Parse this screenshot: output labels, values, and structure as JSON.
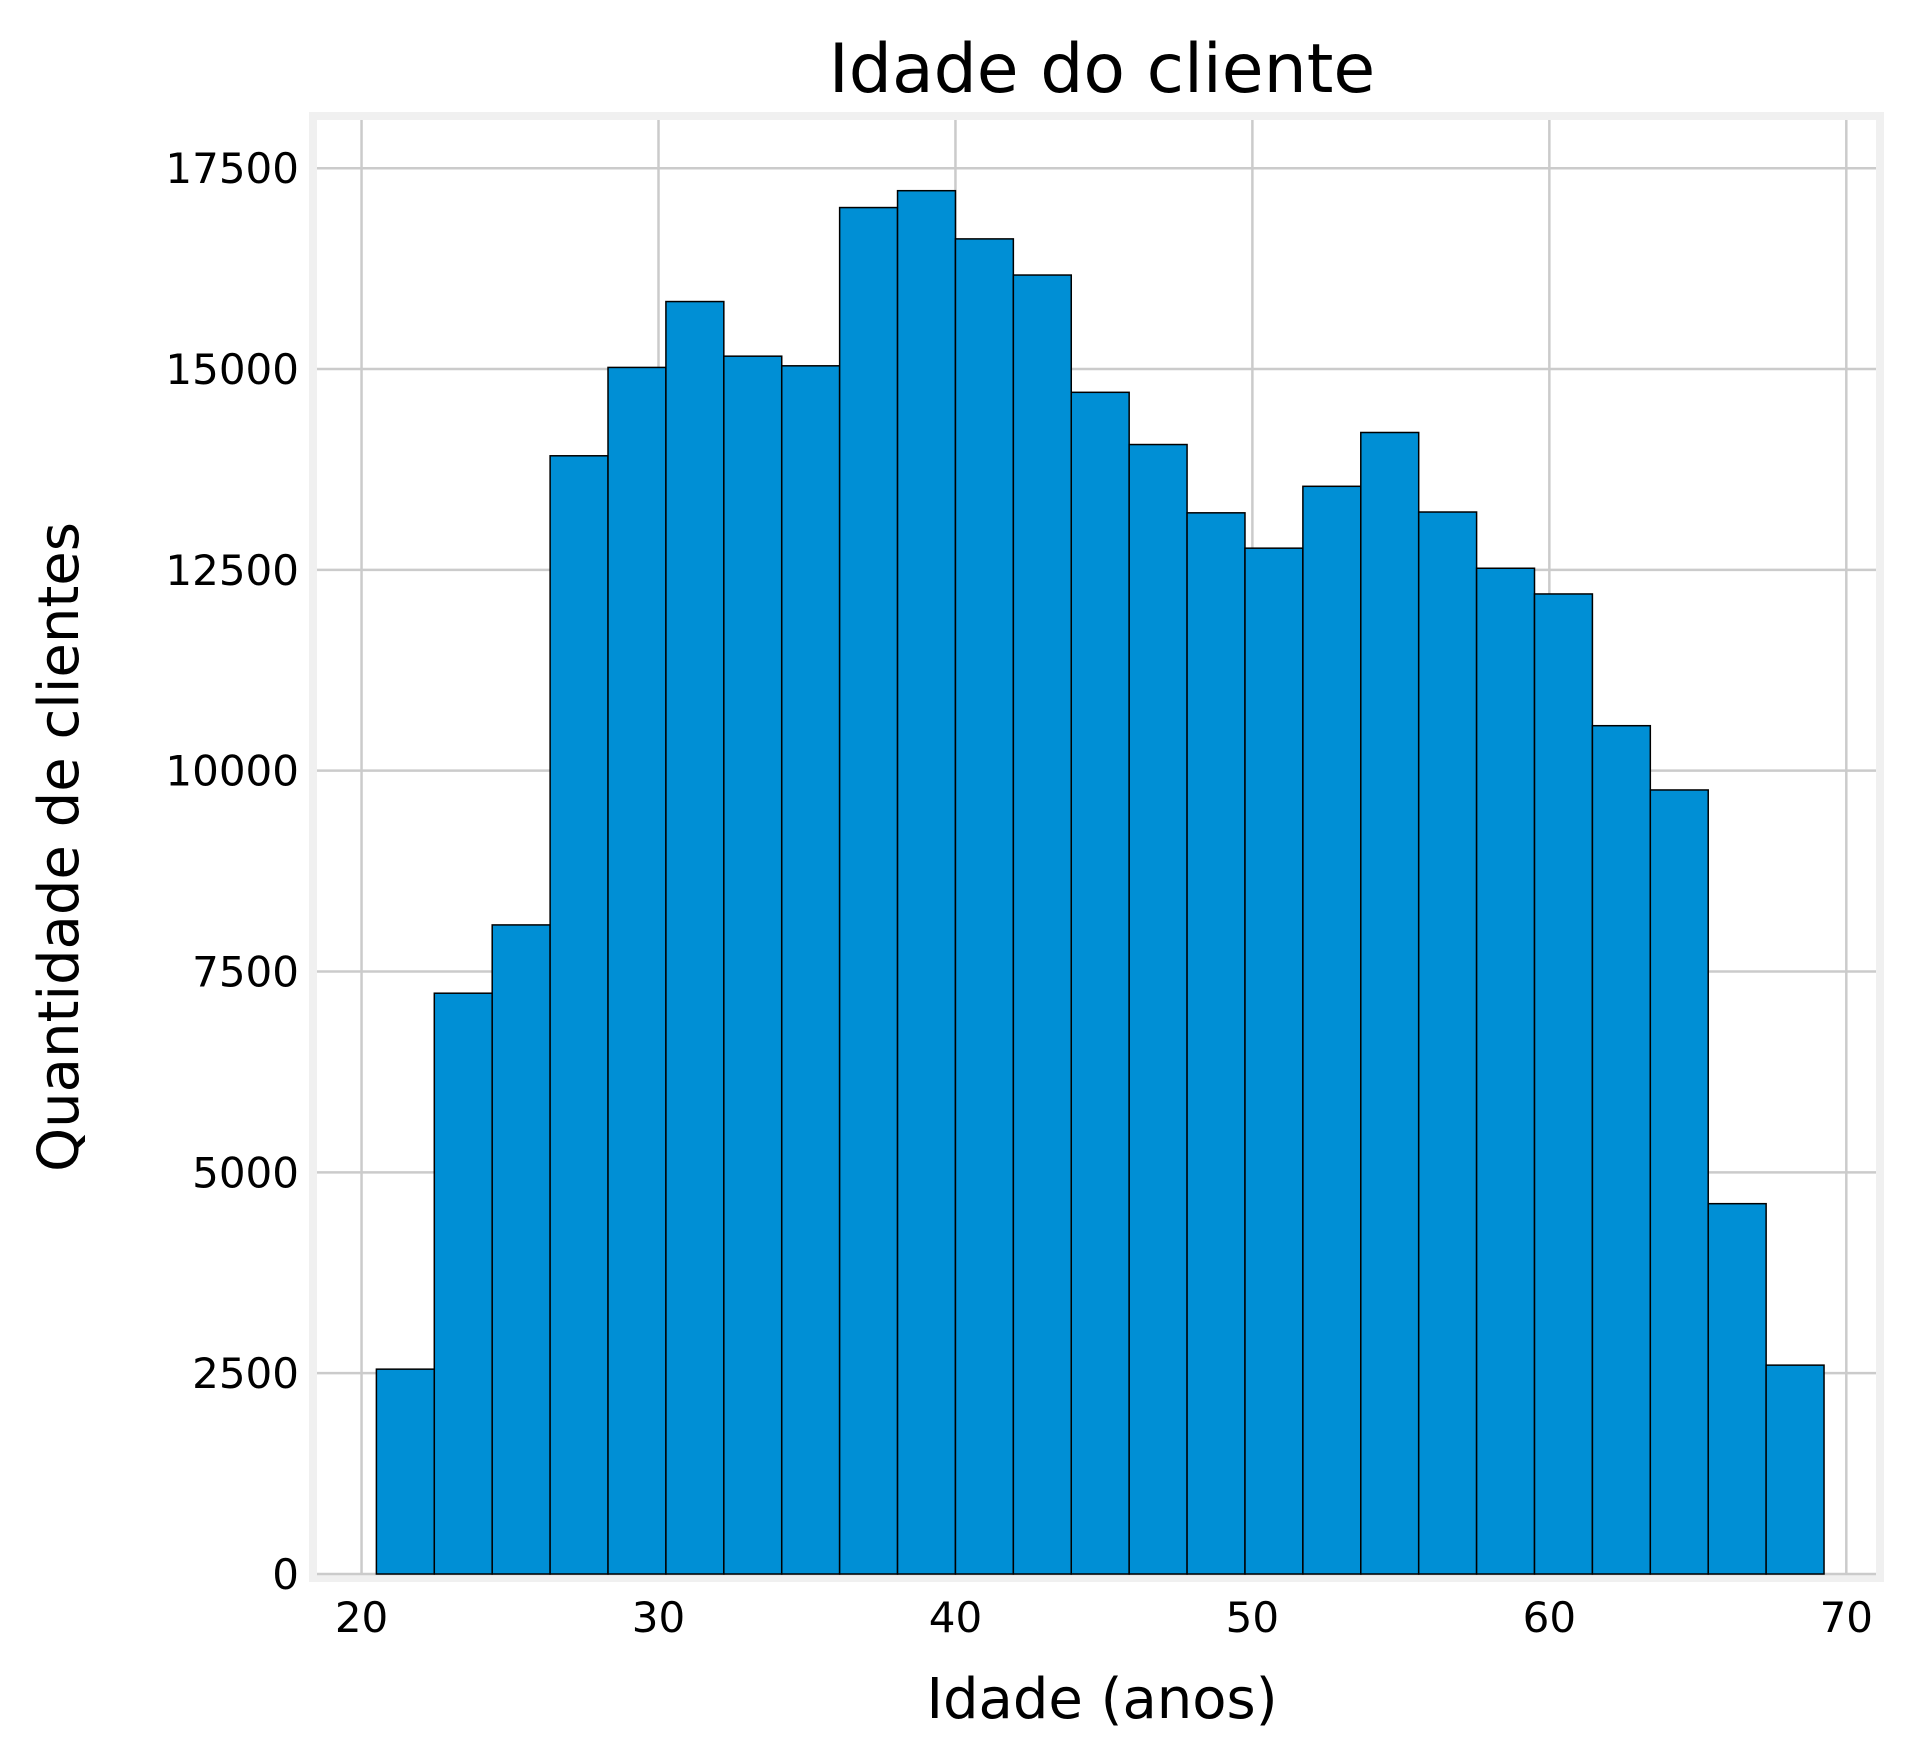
{
  "chart_data": {
    "type": "bar",
    "title": "Idade do cliente",
    "xlabel": "Idade (anos)",
    "ylabel": "Quantidade de clientes",
    "xlim": [
      18.5,
      71
    ],
    "ylim": [
      0,
      18100
    ],
    "x_ticks": [
      20,
      30,
      40,
      50,
      60,
      70
    ],
    "y_ticks": [
      0,
      2500,
      5000,
      7500,
      10000,
      12500,
      15000,
      17500
    ],
    "grid": true,
    "bar_color": "#008fd5",
    "bar_edge_color": "#000000",
    "bins": [
      {
        "x0": 20.5,
        "x1": 22.45,
        "value": 2550
      },
      {
        "x0": 22.45,
        "x1": 24.4,
        "value": 7230
      },
      {
        "x0": 24.4,
        "x1": 26.35,
        "value": 8080
      },
      {
        "x0": 26.35,
        "x1": 28.3,
        "value": 13920
      },
      {
        "x0": 28.3,
        "x1": 30.25,
        "value": 15020
      },
      {
        "x0": 30.25,
        "x1": 32.2,
        "value": 15840
      },
      {
        "x0": 32.2,
        "x1": 34.15,
        "value": 15160
      },
      {
        "x0": 34.15,
        "x1": 36.1,
        "value": 15040
      },
      {
        "x0": 36.1,
        "x1": 38.05,
        "value": 17010
      },
      {
        "x0": 38.05,
        "x1": 40.0,
        "value": 17220
      },
      {
        "x0": 40.0,
        "x1": 41.95,
        "value": 16620
      },
      {
        "x0": 41.95,
        "x1": 43.9,
        "value": 16170
      },
      {
        "x0": 43.9,
        "x1": 45.85,
        "value": 14710
      },
      {
        "x0": 45.85,
        "x1": 47.8,
        "value": 14060
      },
      {
        "x0": 47.8,
        "x1": 49.75,
        "value": 13210
      },
      {
        "x0": 49.75,
        "x1": 51.7,
        "value": 12770
      },
      {
        "x0": 51.7,
        "x1": 53.65,
        "value": 13540
      },
      {
        "x0": 53.65,
        "x1": 55.6,
        "value": 14210
      },
      {
        "x0": 55.6,
        "x1": 57.55,
        "value": 13220
      },
      {
        "x0": 57.55,
        "x1": 59.5,
        "value": 12520
      },
      {
        "x0": 59.5,
        "x1": 61.45,
        "value": 12200
      },
      {
        "x0": 61.45,
        "x1": 63.4,
        "value": 10560
      },
      {
        "x0": 63.4,
        "x1": 65.35,
        "value": 9760
      },
      {
        "x0": 65.35,
        "x1": 67.3,
        "value": 4610
      },
      {
        "x0": 67.3,
        "x1": 69.25,
        "value": 2600
      }
    ]
  }
}
